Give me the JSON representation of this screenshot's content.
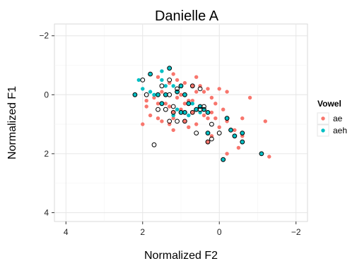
{
  "chart_data": {
    "type": "scatter",
    "title": "Danielle A",
    "xlabel": "Normalized F2",
    "ylabel": "Normalized F1",
    "xlim": [
      4.3,
      -2.3
    ],
    "ylim": [
      -2.4,
      4.3
    ],
    "x_reversed": true,
    "y_reversed": true,
    "xticks": [
      4,
      2,
      0,
      -2
    ],
    "yticks": [
      -2,
      0,
      2,
      4
    ],
    "xtick_labels": [
      "4",
      "2",
      "0",
      "−2"
    ],
    "ytick_labels": [
      "−2",
      "0",
      "2",
      "4"
    ],
    "grid": true,
    "legend_position": "right",
    "legend_title": "Vowel",
    "colors": {
      "ae": "#f8766d",
      "aeh": "#00bfc4",
      "outline": "#000000"
    },
    "series": [
      {
        "name": "ae",
        "color": "#f8766d",
        "points": [
          [
            1.6,
            0.8
          ],
          [
            1.4,
            0.3
          ],
          [
            1.2,
            0.6
          ],
          [
            1.0,
            0.5
          ],
          [
            0.8,
            0.2
          ],
          [
            1.9,
            0.4
          ],
          [
            1.7,
            0.1
          ],
          [
            1.5,
            -0.1
          ],
          [
            1.3,
            -0.4
          ],
          [
            1.1,
            -0.5
          ],
          [
            0.9,
            -0.4
          ],
          [
            0.7,
            -0.3
          ],
          [
            0.5,
            -0.3
          ],
          [
            0.4,
            -0.1
          ],
          [
            0.3,
            -0.2
          ],
          [
            0.2,
            0.1
          ],
          [
            1.1,
            0.1
          ],
          [
            1.0,
            0.0
          ],
          [
            0.9,
            0.3
          ],
          [
            0.7,
            0.2
          ],
          [
            0.6,
            0.5
          ],
          [
            0.5,
            0.4
          ],
          [
            0.4,
            0.7
          ],
          [
            0.3,
            0.8
          ],
          [
            0.2,
            0.6
          ],
          [
            1.8,
            0.7
          ],
          [
            2.0,
            1.0
          ],
          [
            1.5,
            0.9
          ],
          [
            1.3,
            1.0
          ],
          [
            1.2,
            1.2
          ],
          [
            0.8,
            1.1
          ],
          [
            0.6,
            1.0
          ],
          [
            0.1,
            0.8
          ],
          [
            0.0,
            1.1
          ],
          [
            -0.1,
            0.5
          ],
          [
            -0.2,
            0.9
          ],
          [
            -0.4,
            1.2
          ],
          [
            -0.6,
            0.8
          ],
          [
            -0.8,
            0.1
          ],
          [
            -0.2,
            -0.1
          ],
          [
            0.2,
            1.4
          ],
          [
            0.3,
            1.6
          ],
          [
            -0.2,
            2.0
          ],
          [
            -1.3,
            2.1
          ],
          [
            -1.2,
            0.9
          ],
          [
            -0.6,
            1.4
          ],
          [
            -0.5,
            1.8
          ],
          [
            1.2,
            -0.7
          ],
          [
            0.6,
            -0.1
          ],
          [
            1.3,
            0.4
          ],
          [
            0.0,
            -0.2
          ],
          [
            0.9,
            0.9
          ],
          [
            0.4,
            0.5
          ],
          [
            1.6,
            0.3
          ],
          [
            1.9,
            0.2
          ],
          [
            1.6,
            -0.6
          ],
          [
            1.2,
            0.8
          ],
          [
            0.7,
            0.6
          ],
          [
            0.1,
            0.3
          ],
          [
            0.6,
            -0.6
          ]
        ]
      },
      {
        "name": "aeh",
        "color": "#00bfc4",
        "points": [
          [
            2.2,
            0.0
          ],
          [
            1.8,
            -0.7
          ],
          [
            1.5,
            -0.5
          ],
          [
            1.3,
            -0.9
          ],
          [
            1.6,
            0.0
          ],
          [
            1.4,
            0.0
          ],
          [
            1.1,
            -0.1
          ],
          [
            1.0,
            -0.3
          ],
          [
            0.9,
            0.0
          ],
          [
            0.8,
            0.3
          ],
          [
            0.6,
            0.5
          ],
          [
            0.4,
            0.5
          ],
          [
            0.3,
            0.6
          ],
          [
            -0.2,
            0.8
          ],
          [
            -0.3,
            1.2
          ],
          [
            -0.4,
            1.4
          ],
          [
            -0.6,
            1.3
          ],
          [
            -0.6,
            1.6
          ],
          [
            0.3,
            1.3
          ],
          [
            1.7,
            0.0
          ],
          [
            1.5,
            0.3
          ],
          [
            1.1,
            0.5
          ],
          [
            1.0,
            0.6
          ],
          [
            -1.1,
            2.0
          ],
          [
            -0.1,
            2.2
          ],
          [
            2.0,
            -0.2
          ],
          [
            1.2,
            -0.3
          ],
          [
            0.5,
            0.4
          ],
          [
            1.4,
            -0.3
          ],
          [
            0.9,
            0.6
          ],
          [
            1.8,
            -0.1
          ],
          [
            0.7,
            0.3
          ],
          [
            1.2,
            0.7
          ],
          [
            2.1,
            -0.5
          ],
          [
            1.5,
            -0.8
          ],
          [
            0.8,
            0.7
          ],
          [
            0.5,
            0.6
          ]
        ]
      }
    ],
    "outlined_points": [
      [
        2.2,
        0.0
      ],
      [
        1.8,
        -0.7
      ],
      [
        1.3,
        -0.9
      ],
      [
        1.3,
        -0.5
      ],
      [
        1.6,
        0.0
      ],
      [
        1.4,
        0.0
      ],
      [
        1.3,
        0.0
      ],
      [
        1.1,
        -0.1
      ],
      [
        1.0,
        -0.3
      ],
      [
        0.9,
        0.0
      ],
      [
        0.8,
        0.3
      ],
      [
        0.6,
        0.5
      ],
      [
        0.4,
        0.5
      ],
      [
        0.3,
        0.6
      ],
      [
        0.7,
        -0.3
      ],
      [
        0.5,
        -0.2
      ],
      [
        1.6,
        0.5
      ],
      [
        1.4,
        0.5
      ],
      [
        1.2,
        0.6
      ],
      [
        1.5,
        0.3
      ],
      [
        1.0,
        0.6
      ],
      [
        0.9,
        0.9
      ],
      [
        1.5,
        -0.3
      ],
      [
        1.9,
        0.0
      ],
      [
        2.0,
        -0.5
      ],
      [
        -0.2,
        0.8
      ],
      [
        -0.3,
        1.2
      ],
      [
        -0.4,
        1.4
      ],
      [
        -0.6,
        1.3
      ],
      [
        -0.6,
        1.6
      ],
      [
        -1.1,
        2.0
      ],
      [
        -0.1,
        2.2
      ],
      [
        0.3,
        1.3
      ],
      [
        0.2,
        1.5
      ],
      [
        0.3,
        1.6
      ],
      [
        0.6,
        1.3
      ],
      [
        1.1,
        0.9
      ],
      [
        1.3,
        0.9
      ],
      [
        0.2,
        1.0
      ],
      [
        0.5,
        0.5
      ],
      [
        0.4,
        0.4
      ],
      [
        1.7,
        1.7
      ],
      [
        0.0,
        1.3
      ],
      [
        0.7,
        0.6
      ],
      [
        1.2,
        0.4
      ],
      [
        1.1,
        -0.2
      ],
      [
        0.5,
        0.4
      ],
      [
        0.9,
        0.6
      ]
    ]
  }
}
